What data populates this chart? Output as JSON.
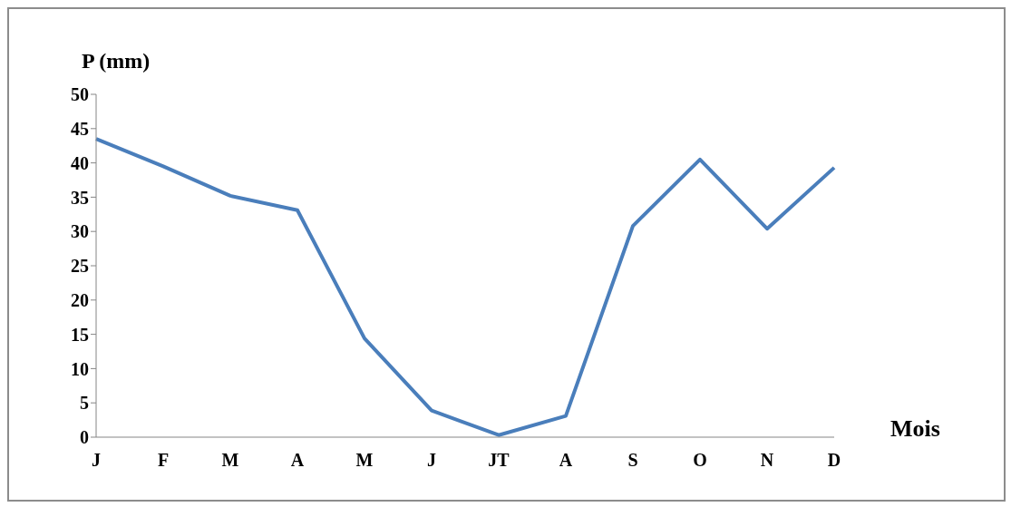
{
  "chart_data": {
    "type": "line",
    "xlabel": "Mois",
    "ylabel": "P (mm)",
    "categories": [
      "J",
      "F",
      "M",
      "A",
      "M",
      "J",
      "JT",
      "A",
      "S",
      "O",
      "N",
      "D"
    ],
    "series": [
      {
        "color": "#4a7ebb",
        "values": [
          43.5,
          39.5,
          35.2,
          33.1,
          14.4,
          3.9,
          0.3,
          3.1,
          30.8,
          40.5,
          30.4,
          39.3
        ]
      }
    ],
    "ylim": [
      0,
      50
    ],
    "yticks": [
      0,
      5,
      10,
      15,
      20,
      25,
      30,
      35,
      40,
      45,
      50
    ],
    "grid": false,
    "legend": false,
    "marker": "none"
  }
}
